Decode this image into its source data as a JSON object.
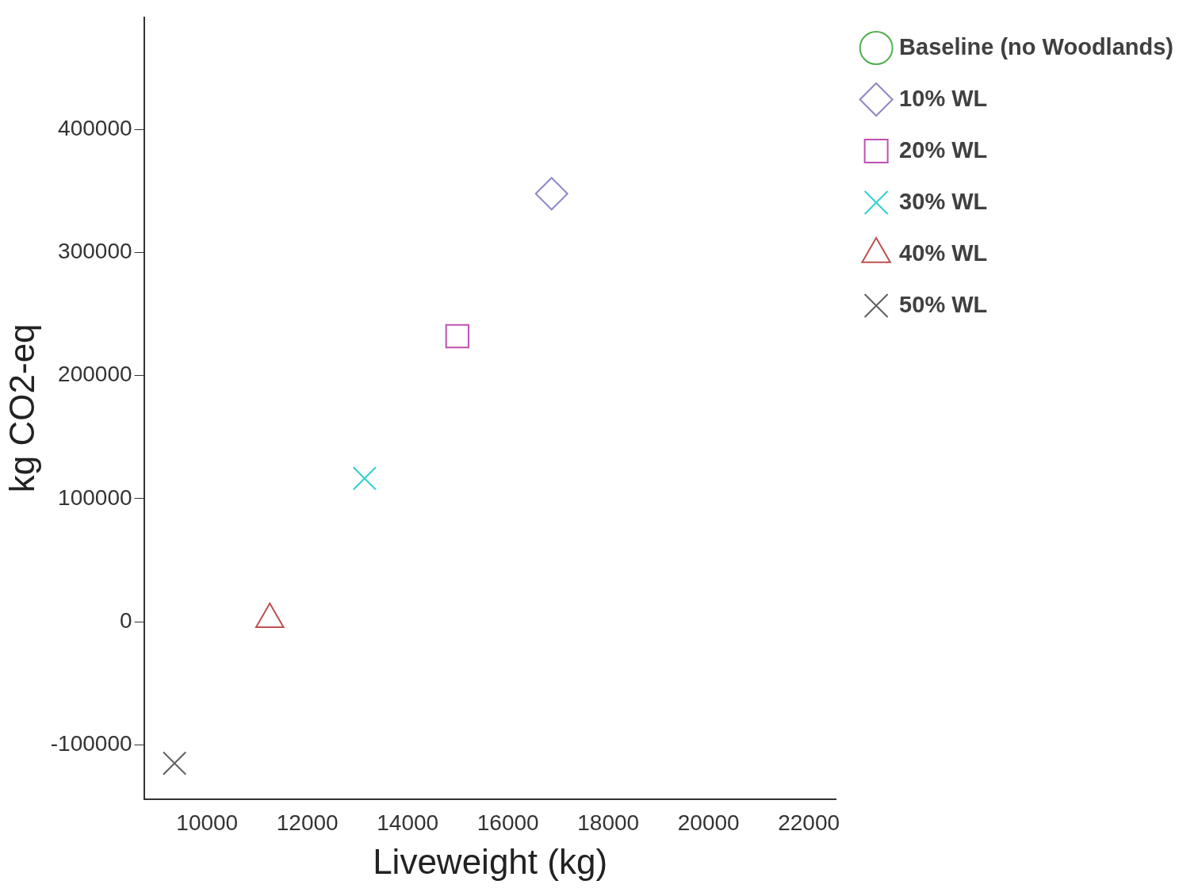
{
  "chart_data": {
    "type": "scatter",
    "xlabel": "Liveweight (kg)",
    "ylabel": "kg CO2-eq",
    "xlim": [
      8740,
      22545
    ],
    "xticks": [
      10000,
      12000,
      14000,
      16000,
      18000,
      20000,
      22000
    ],
    "ylim": [
      -144000,
      491000
    ],
    "yticks": [
      -100000,
      0,
      100000,
      200000,
      300000,
      400000
    ],
    "grid": false,
    "legend": "top right",
    "series": [
      {
        "name": "Baseline (no Woodlands)",
        "color": "#50b050",
        "marker": "circle"
      },
      {
        "name": "10% WL",
        "color": "#8c88c8",
        "marker": "diamond",
        "x": [
          16870
        ],
        "values": [
          347800
        ]
      },
      {
        "name": "20% WL",
        "color": "#c050b0",
        "marker": "square",
        "x": [
          14990
        ],
        "values": [
          232000
        ]
      },
      {
        "name": "30% WL",
        "color": "#30d0d0",
        "marker": "cross",
        "x": [
          13140
        ],
        "values": [
          116400
        ]
      },
      {
        "name": "40% WL",
        "color": "#c05050",
        "marker": "triangle",
        "x": [
          11250
        ],
        "values": [
          2000
        ]
      },
      {
        "name": "50% WL",
        "color": "#606060",
        "marker": "cross",
        "x": [
          9350
        ],
        "values": [
          -115000
        ]
      }
    ]
  }
}
